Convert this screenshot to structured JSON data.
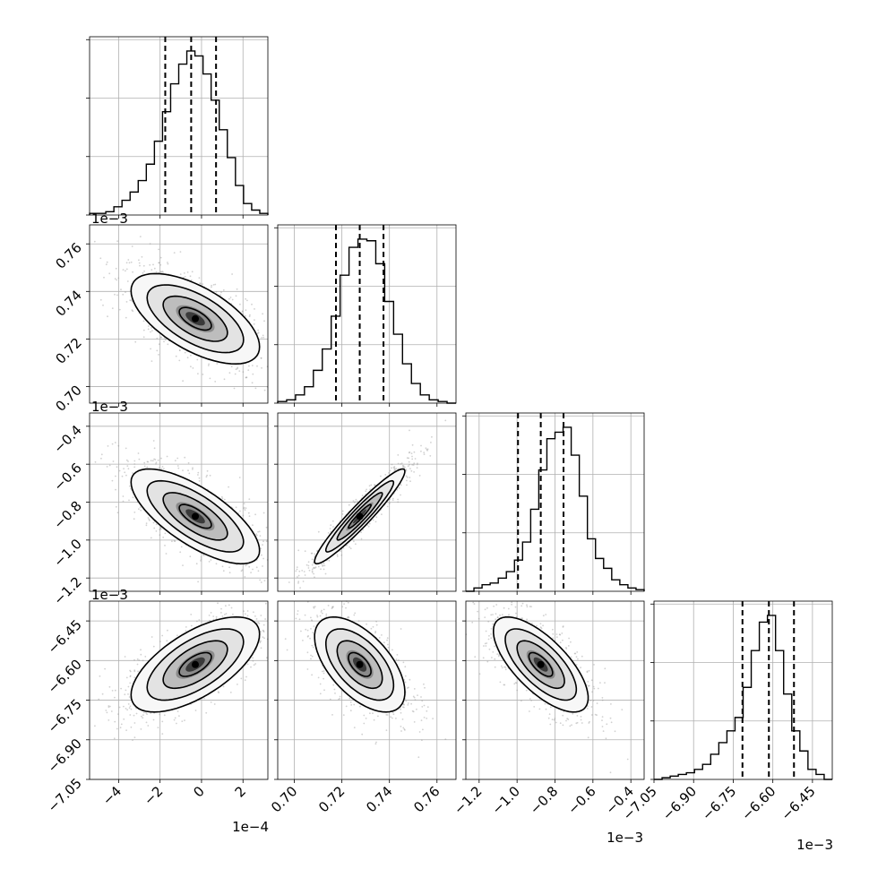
{
  "chart_data": {
    "type": "corner",
    "title": "",
    "parameters": [
      {
        "id": "p1",
        "offset_label": "1e−4",
        "range": [
          -5.4,
          3.2
        ],
        "ticks": [
          -4,
          -2,
          0,
          2
        ],
        "tick_labels": [
          "−4",
          "−2",
          "0",
          "2"
        ],
        "quantiles": [
          -1.75,
          -0.5,
          0.7
        ],
        "histogram": [
          0.01,
          0.01,
          0.02,
          0.05,
          0.09,
          0.14,
          0.21,
          0.31,
          0.45,
          0.63,
          0.8,
          0.92,
          1.0,
          0.97,
          0.86,
          0.7,
          0.52,
          0.35,
          0.18,
          0.07,
          0.03,
          0.01
        ]
      },
      {
        "id": "p2",
        "offset_label": "1e−3",
        "range": [
          0.693,
          0.768
        ],
        "ticks": [
          0.7,
          0.72,
          0.74,
          0.76
        ],
        "tick_labels": [
          "0.70",
          "0.72",
          "0.74",
          "0.76"
        ],
        "quantiles": [
          0.7175,
          0.7275,
          0.7375
        ],
        "histogram": [
          0.01,
          0.02,
          0.05,
          0.1,
          0.2,
          0.33,
          0.53,
          0.78,
          0.95,
          1.0,
          0.99,
          0.85,
          0.62,
          0.42,
          0.24,
          0.12,
          0.05,
          0.02,
          0.01,
          0.0
        ]
      },
      {
        "id": "p3",
        "offset_label": "1e−3",
        "range": [
          -1.27,
          -0.33
        ],
        "ticks": [
          -1.2,
          -1.0,
          -0.8,
          -0.6,
          -0.4
        ],
        "tick_labels": [
          "−1.2",
          "−1.0",
          "−0.8",
          "−0.6",
          "−0.4"
        ],
        "quantiles": [
          -0.995,
          -0.875,
          -0.755
        ],
        "histogram": [
          0.0,
          0.02,
          0.04,
          0.05,
          0.08,
          0.12,
          0.19,
          0.3,
          0.5,
          0.74,
          0.93,
          0.97,
          1.0,
          0.83,
          0.58,
          0.32,
          0.2,
          0.14,
          0.07,
          0.04,
          0.02,
          0.01
        ]
      },
      {
        "id": "p4",
        "offset_label": "1e−3",
        "range": [
          -7.05,
          -6.375
        ],
        "ticks": [
          -7.05,
          -6.9,
          -6.75,
          -6.6,
          -6.45
        ],
        "tick_labels": [
          "−7.05",
          "−6.90",
          "−6.75",
          "−6.60",
          "−6.45"
        ],
        "quantiles": [
          -6.715,
          -6.615,
          -6.52
        ],
        "histogram": [
          0.0,
          0.01,
          0.02,
          0.03,
          0.04,
          0.06,
          0.09,
          0.15,
          0.22,
          0.29,
          0.37,
          0.55,
          0.77,
          0.94,
          0.98,
          0.77,
          0.51,
          0.29,
          0.17,
          0.06,
          0.03,
          0.0
        ]
      }
    ],
    "pairs": [
      {
        "x": "p1",
        "y": "p2",
        "center": [
          -0.3,
          0.7285
        ],
        "sigma": [
          1.55,
          0.0095
        ],
        "rho": -0.62
      },
      {
        "x": "p1",
        "y": "p3",
        "center": [
          -0.3,
          -0.875
        ],
        "sigma": [
          1.55,
          0.125
        ],
        "rho": -0.72
      },
      {
        "x": "p2",
        "y": "p3",
        "center": [
          0.7275,
          -0.875
        ],
        "sigma": [
          0.0095,
          0.125
        ],
        "rho": 0.95
      },
      {
        "x": "p1",
        "y": "p4",
        "center": [
          -0.3,
          -6.615
        ],
        "sigma": [
          1.55,
          0.09
        ],
        "rho": 0.64
      },
      {
        "x": "p2",
        "y": "p4",
        "center": [
          0.7275,
          -6.615
        ],
        "sigma": [
          0.0095,
          0.09
        ],
        "rho": -0.58
      },
      {
        "x": "p3",
        "y": "p4",
        "center": [
          -0.875,
          -6.615
        ],
        "sigma": [
          0.125,
          0.09
        ],
        "rho": -0.7
      }
    ],
    "histogram_y_ticks": 3,
    "grid": true,
    "legend": "none"
  }
}
